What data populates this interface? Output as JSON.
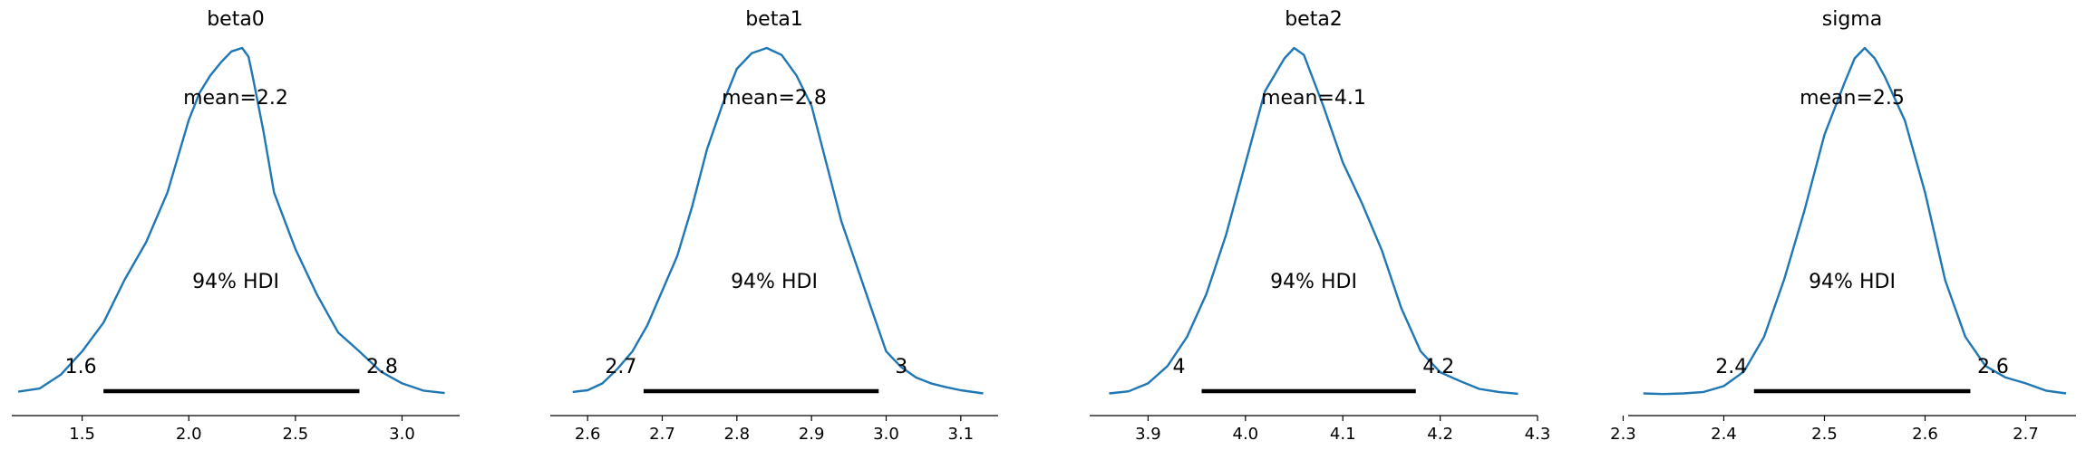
{
  "chart_data": [
    {
      "type": "density",
      "title": "beta0",
      "xlim": [
        1.17,
        3.27
      ],
      "xticks": [
        1.5,
        2.0,
        2.5,
        3.0
      ],
      "xtick_labels": [
        "1.5",
        "2.0",
        "2.5",
        "3.0"
      ],
      "mean_label": "mean=2.2",
      "hdi_label": "94% HDI",
      "hdi": [
        1.6,
        2.8
      ],
      "hdi_labels": [
        "1.6",
        "2.8"
      ],
      "density_x": [
        1.2,
        1.3,
        1.4,
        1.5,
        1.6,
        1.7,
        1.8,
        1.9,
        2.0,
        2.05,
        2.1,
        2.15,
        2.2,
        2.25,
        2.28,
        2.3,
        2.35,
        2.4,
        2.5,
        2.6,
        2.7,
        2.8,
        2.9,
        3.0,
        3.1,
        3.2
      ],
      "density_y": [
        0.009,
        0.018,
        0.058,
        0.125,
        0.208,
        0.333,
        0.44,
        0.583,
        0.792,
        0.87,
        0.92,
        0.958,
        0.99,
        1.0,
        0.975,
        0.917,
        0.76,
        0.583,
        0.42,
        0.29,
        0.18,
        0.125,
        0.067,
        0.033,
        0.012,
        0.005
      ]
    },
    {
      "type": "density",
      "title": "beta1",
      "xlim": [
        2.55,
        3.15
      ],
      "xticks": [
        2.6,
        2.7,
        2.8,
        2.9,
        3.0,
        3.1
      ],
      "xtick_labels": [
        "2.6",
        "2.7",
        "2.8",
        "2.9",
        "3.0",
        "3.1"
      ],
      "mean_label": "mean=2.8",
      "hdi_label": "94% HDI",
      "hdi": [
        2.675,
        2.99
      ],
      "hdi_labels": [
        "2.7",
        "3"
      ],
      "density_x": [
        2.58,
        2.6,
        2.62,
        2.64,
        2.66,
        2.68,
        2.7,
        2.72,
        2.74,
        2.76,
        2.78,
        2.8,
        2.82,
        2.84,
        2.86,
        2.88,
        2.9,
        2.92,
        2.94,
        2.96,
        2.98,
        3.0,
        3.02,
        3.04,
        3.06,
        3.08,
        3.1,
        3.13
      ],
      "density_y": [
        0.008,
        0.013,
        0.033,
        0.075,
        0.125,
        0.2,
        0.3,
        0.4,
        0.542,
        0.708,
        0.833,
        0.94,
        0.985,
        1.0,
        0.98,
        0.92,
        0.833,
        0.667,
        0.5,
        0.375,
        0.25,
        0.125,
        0.08,
        0.05,
        0.033,
        0.022,
        0.013,
        0.004
      ]
    },
    {
      "type": "density",
      "title": "beta2",
      "xlim": [
        3.84,
        4.3
      ],
      "xticks": [
        3.9,
        4.0,
        4.1,
        4.2,
        4.3
      ],
      "xtick_labels": [
        "3.9",
        "4.0",
        "4.1",
        "4.2",
        "4.3"
      ],
      "mean_label": "mean=4.1",
      "hdi_label": "94% HDI",
      "hdi": [
        3.955,
        4.175
      ],
      "hdi_labels": [
        "4",
        "4.2"
      ],
      "density_x": [
        3.86,
        3.88,
        3.9,
        3.92,
        3.94,
        3.96,
        3.98,
        4.0,
        4.02,
        4.04,
        4.05,
        4.06,
        4.08,
        4.1,
        4.12,
        4.14,
        4.16,
        4.18,
        4.2,
        4.22,
        4.24,
        4.26,
        4.28
      ],
      "density_y": [
        0.004,
        0.01,
        0.033,
        0.083,
        0.167,
        0.292,
        0.46,
        0.667,
        0.875,
        0.97,
        1.0,
        0.98,
        0.833,
        0.67,
        0.55,
        0.417,
        0.25,
        0.125,
        0.065,
        0.04,
        0.017,
        0.008,
        0.003
      ]
    },
    {
      "type": "density",
      "title": "sigma",
      "xlim": [
        2.305,
        2.75
      ],
      "xticks": [
        2.3,
        2.4,
        2.5,
        2.6,
        2.7
      ],
      "xtick_labels": [
        "2.3",
        "2.4",
        "2.5",
        "2.6",
        "2.7"
      ],
      "mean_label": "mean=2.5",
      "hdi_label": "94% HDI",
      "hdi": [
        2.43,
        2.645
      ],
      "hdi_labels": [
        "2.4",
        "2.6"
      ],
      "density_x": [
        2.32,
        2.34,
        2.36,
        2.38,
        2.4,
        2.42,
        2.44,
        2.46,
        2.48,
        2.5,
        2.52,
        2.53,
        2.54,
        2.55,
        2.56,
        2.58,
        2.6,
        2.62,
        2.64,
        2.66,
        2.68,
        2.7,
        2.72,
        2.74
      ],
      "density_y": [
        0.004,
        0.002,
        0.004,
        0.008,
        0.025,
        0.067,
        0.167,
        0.333,
        0.53,
        0.75,
        0.9,
        0.97,
        1.0,
        0.97,
        0.917,
        0.79,
        0.583,
        0.33,
        0.167,
        0.083,
        0.05,
        0.033,
        0.012,
        0.004
      ]
    }
  ],
  "style": {
    "line_color": "#1f77b4",
    "hdi_color": "#000000",
    "axis_color": "#000000"
  }
}
